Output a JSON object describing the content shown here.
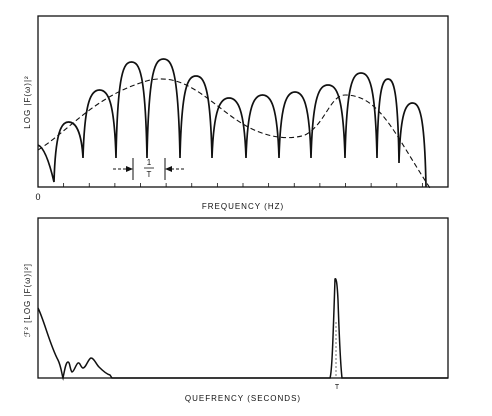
{
  "top_panel": {
    "ylabel": "LOG |F(ω)|²",
    "xlabel": "FREQUENCY (HZ)",
    "origin_label": "0",
    "period_annotation": {
      "numerator": "1",
      "denominator": "T"
    }
  },
  "bottom_panel": {
    "ylabel": "ℱ² [LOG |F(ω)|²]",
    "xlabel": "QUEFRENCY (SECONDS)",
    "peak_label": "T"
  },
  "colors": {
    "ink": "#111111",
    "background": "#ffffff"
  }
}
